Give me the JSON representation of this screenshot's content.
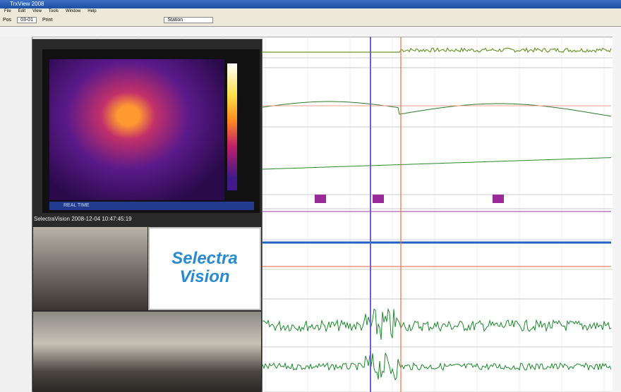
{
  "window": {
    "title": "TrxView 2008"
  },
  "menu": [
    "File",
    "Edit",
    "View",
    "Tools",
    "Window",
    "Help"
  ],
  "toolbar": {
    "position_label": "Pos",
    "position_value": "03-01",
    "print": "Print",
    "station": "Station"
  },
  "video": {
    "mode": "REAL TIME",
    "overlay": "SelectraVision 2008-12-04 10:47:45:19",
    "logo_line1": "Selectra",
    "logo_line2": "Vision"
  }
}
